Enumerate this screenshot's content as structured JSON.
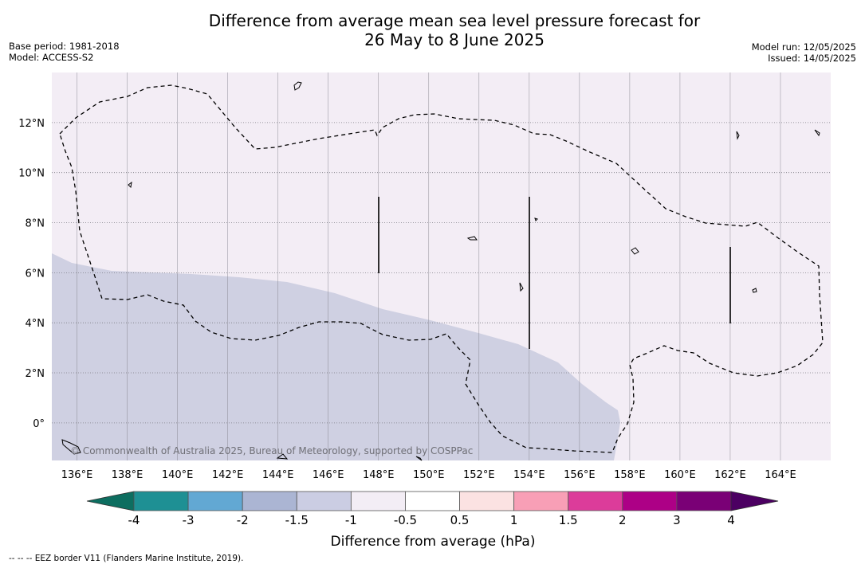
{
  "title": {
    "line1": "Difference from average mean sea level pressure forecast for",
    "line2": "26 May to 8 June 2025"
  },
  "meta": {
    "base_period": "Base period: 1981-2018",
    "model": "Model: ACCESS-S2",
    "model_run": "Model run: 12/05/2025",
    "issued": "Issued: 14/05/2025"
  },
  "map": {
    "lon_range": [
      135,
      166
    ],
    "lat_range": [
      -1.5,
      14
    ],
    "lon_ticks": [
      "136°E",
      "138°E",
      "140°E",
      "142°E",
      "144°E",
      "146°E",
      "148°E",
      "150°E",
      "152°E",
      "154°E",
      "156°E",
      "158°E",
      "160°E",
      "162°E",
      "164°E"
    ],
    "lat_ticks": [
      "0°",
      "2°N",
      "4°N",
      "6°N",
      "8°N",
      "10°N",
      "12°N"
    ],
    "copyright": "© Commonwealth of Australia 2025, Bureau of Meteorology, supported by COSPPac",
    "fill_colors": {
      "band_neg1_to_neg05": "#f3edf5",
      "band_neg15_to_neg1": "#cfd0e2"
    }
  },
  "colorbar": {
    "labels": [
      "-4",
      "-3",
      "-2",
      "-1.5",
      "-1",
      "-0.5",
      "0.5",
      "1",
      "1.5",
      "2",
      "3",
      "4"
    ],
    "colors": [
      "#1e9094",
      "#62a8d3",
      "#abb5d3",
      "#cbcde3",
      "#f3edf5",
      "#ffffff",
      "#fbe2e2",
      "#f89fb6",
      "#dc3c9a",
      "#ad0086",
      "#7a0076"
    ],
    "under_color": "#0d6e60",
    "over_color": "#4c0062",
    "title": "Difference from average (hPa)"
  },
  "footnote": "--  --  -- EEZ border V11 (Flanders Marine Institute, 2019)."
}
